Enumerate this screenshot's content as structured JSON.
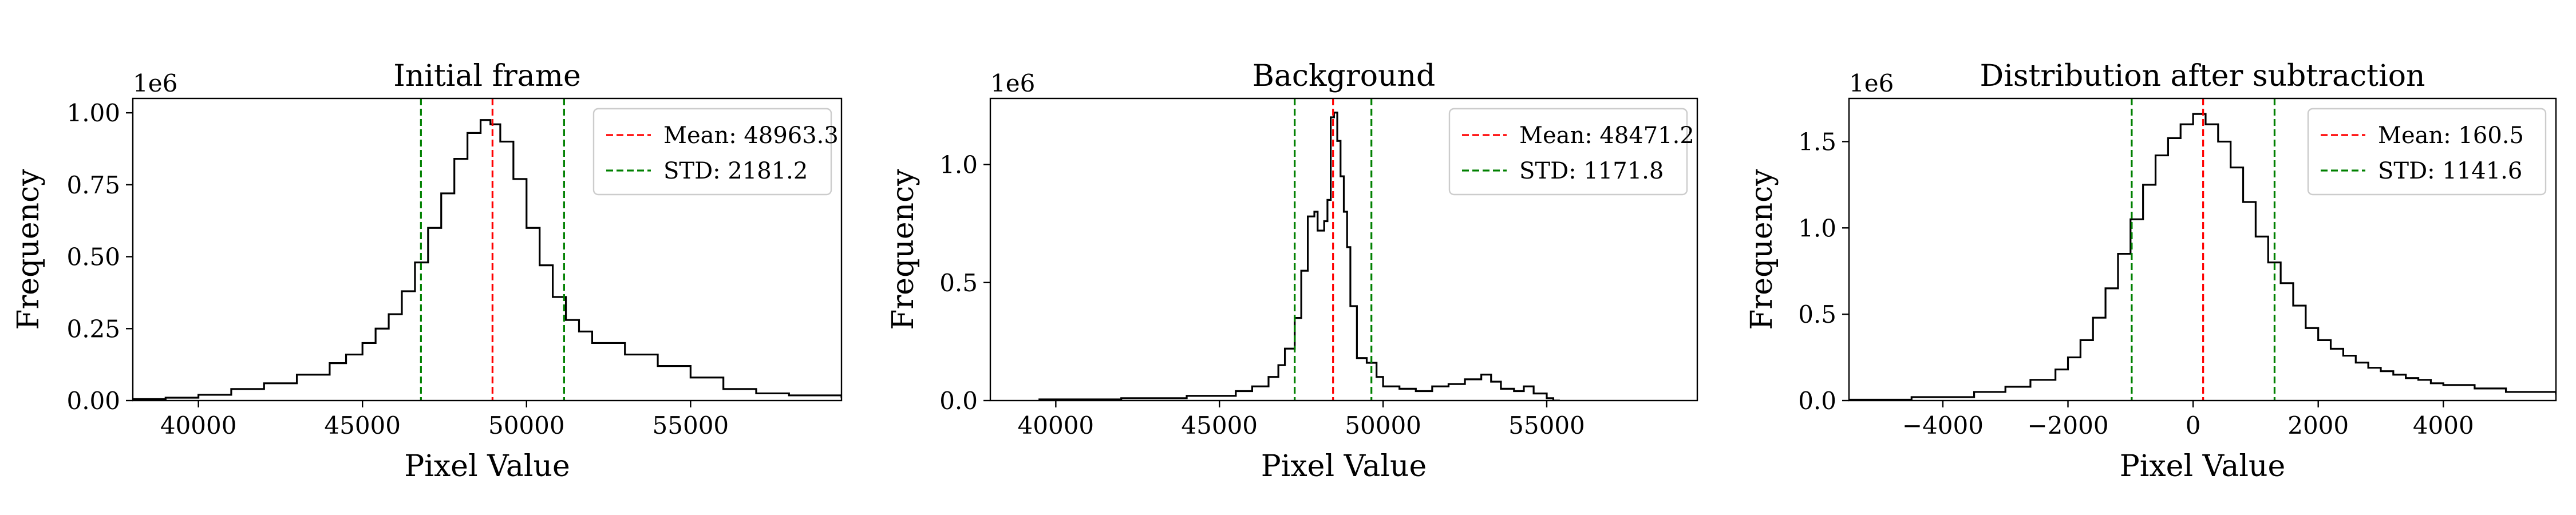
{
  "chart_data": [
    {
      "type": "histogram",
      "title": "Initial frame",
      "xlabel": "Pixel Value",
      "ylabel": "Frequency",
      "y_offset_label": "1e6",
      "xlim": [
        38000,
        59600
      ],
      "ylim": [
        0,
        1.05
      ],
      "xticks": [
        40000,
        45000,
        50000,
        55000
      ],
      "xtick_labels": [
        "40000",
        "45000",
        "50000",
        "55000"
      ],
      "yticks": [
        0,
        0.25,
        0.5,
        0.75,
        1.0
      ],
      "ytick_labels": [
        "0.00",
        "0.25",
        "0.50",
        "0.75",
        "1.00"
      ],
      "histogram": {
        "x": [
          38000,
          39000,
          40000,
          41000,
          42000,
          43000,
          44000,
          44500,
          45000,
          45400,
          45800,
          46200,
          46600,
          47000,
          47400,
          47800,
          48200,
          48600,
          48900,
          49200,
          49600,
          50000,
          50400,
          50800,
          51200,
          51600,
          52000,
          53000,
          54000,
          55000,
          56000,
          57000,
          58000,
          59600
        ],
        "y": [
          0.005,
          0.01,
          0.02,
          0.04,
          0.06,
          0.09,
          0.13,
          0.16,
          0.2,
          0.25,
          0.3,
          0.38,
          0.48,
          0.6,
          0.72,
          0.84,
          0.93,
          0.975,
          0.96,
          0.9,
          0.77,
          0.6,
          0.47,
          0.36,
          0.28,
          0.24,
          0.2,
          0.16,
          0.12,
          0.08,
          0.04,
          0.025,
          0.018,
          0.012
        ]
      },
      "lines": [
        {
          "label": "Mean: 48963.3",
          "value": 48963.3,
          "color": "#ff0000"
        },
        {
          "label": "STD: 2181.2",
          "value": 2181.2,
          "color": "#008000"
        }
      ],
      "legend_position": "upper right"
    },
    {
      "type": "histogram",
      "title": "Background",
      "xlabel": "Pixel Value",
      "ylabel": "Frequency",
      "y_offset_label": "1e6",
      "xlim": [
        38000,
        59600
      ],
      "ylim": [
        0,
        1.28
      ],
      "xticks": [
        40000,
        45000,
        50000,
        55000
      ],
      "xtick_labels": [
        "40000",
        "45000",
        "50000",
        "55000"
      ],
      "yticks": [
        0,
        0.5,
        1.0
      ],
      "ytick_labels": [
        "0.0",
        "0.5",
        "1.0"
      ],
      "histogram": {
        "x": [
          39500,
          42000,
          44000,
          45500,
          46000,
          46500,
          46800,
          47000,
          47300,
          47500,
          47700,
          47900,
          48000,
          48200,
          48300,
          48400,
          48500,
          48600,
          48700,
          48800,
          48900,
          49000,
          49200,
          49500,
          49800,
          50000,
          50500,
          51000,
          51500,
          52000,
          52500,
          53000,
          53300,
          53600,
          54000,
          54300,
          54600,
          55000,
          55200
        ],
        "y": [
          0.005,
          0.01,
          0.02,
          0.04,
          0.06,
          0.1,
          0.15,
          0.22,
          0.35,
          0.55,
          0.78,
          0.8,
          0.72,
          0.76,
          0.85,
          1.2,
          1.22,
          1.1,
          0.95,
          0.8,
          0.65,
          0.4,
          0.18,
          0.16,
          0.1,
          0.06,
          0.05,
          0.04,
          0.06,
          0.07,
          0.09,
          0.11,
          0.08,
          0.05,
          0.04,
          0.06,
          0.03,
          0.01,
          0.0
        ]
      },
      "lines": [
        {
          "label": "Mean: 48471.2",
          "value": 48471.2,
          "color": "#ff0000"
        },
        {
          "label": "STD: 1171.8",
          "value": 1171.8,
          "color": "#008000"
        }
      ],
      "legend_position": "upper right"
    },
    {
      "type": "histogram",
      "title": "Distribution after subtraction",
      "xlabel": "Pixel Value",
      "ylabel": "Frequency",
      "y_offset_label": "1e6",
      "xlim": [
        -5500,
        5800
      ],
      "ylim": [
        0,
        1.75
      ],
      "xticks": [
        -4000,
        -2000,
        0,
        2000,
        4000
      ],
      "xtick_labels": [
        "−4000",
        "−2000",
        "0",
        "2000",
        "4000"
      ],
      "yticks": [
        0,
        0.5,
        1.0,
        1.5
      ],
      "ytick_labels": [
        "0.0",
        "0.5",
        "1.0",
        "1.5"
      ],
      "histogram": {
        "x": [
          -5500,
          -4500,
          -3500,
          -3000,
          -2600,
          -2200,
          -2000,
          -1800,
          -1600,
          -1400,
          -1200,
          -1000,
          -800,
          -600,
          -400,
          -200,
          0,
          200,
          400,
          600,
          800,
          1000,
          1200,
          1400,
          1600,
          1800,
          2000,
          2200,
          2400,
          2600,
          2800,
          3000,
          3200,
          3400,
          3600,
          3800,
          4000,
          4500,
          5000,
          5800
        ],
        "y": [
          0.005,
          0.02,
          0.05,
          0.08,
          0.12,
          0.18,
          0.25,
          0.35,
          0.48,
          0.65,
          0.85,
          1.05,
          1.25,
          1.42,
          1.52,
          1.6,
          1.66,
          1.6,
          1.5,
          1.35,
          1.15,
          0.95,
          0.8,
          0.68,
          0.55,
          0.42,
          0.35,
          0.3,
          0.26,
          0.22,
          0.19,
          0.17,
          0.15,
          0.13,
          0.12,
          0.1,
          0.09,
          0.07,
          0.05,
          0.04
        ]
      },
      "lines": [
        {
          "label": "Mean: 160.5",
          "value": 160.5,
          "color": "#ff0000"
        },
        {
          "label": "STD: 1141.6",
          "value": 1141.6,
          "color": "#008000"
        }
      ],
      "legend_position": "upper right"
    }
  ]
}
